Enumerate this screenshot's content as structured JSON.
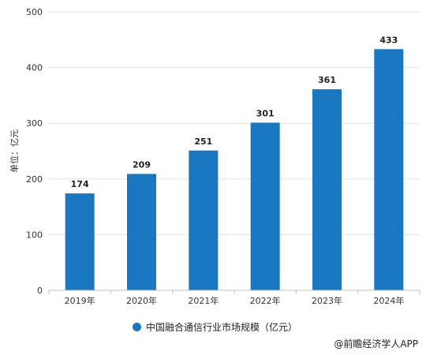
{
  "chart_data": {
    "type": "bar",
    "categories": [
      "2019年",
      "2020年",
      "2021年",
      "2022年",
      "2023年",
      "2024年"
    ],
    "series": [
      {
        "name": "中国融合通信行业市场规模（亿元）",
        "values": [
          174,
          209,
          251,
          301,
          361,
          433
        ]
      }
    ],
    "ylabel": "单位：亿元",
    "ylim": [
      0,
      500
    ],
    "yticks": [
      0,
      100,
      200,
      300,
      400,
      500
    ],
    "grid": true,
    "legend_position": "bottom",
    "bar_color": "#1a78c2"
  },
  "source": "@前瞻经济学人APP"
}
